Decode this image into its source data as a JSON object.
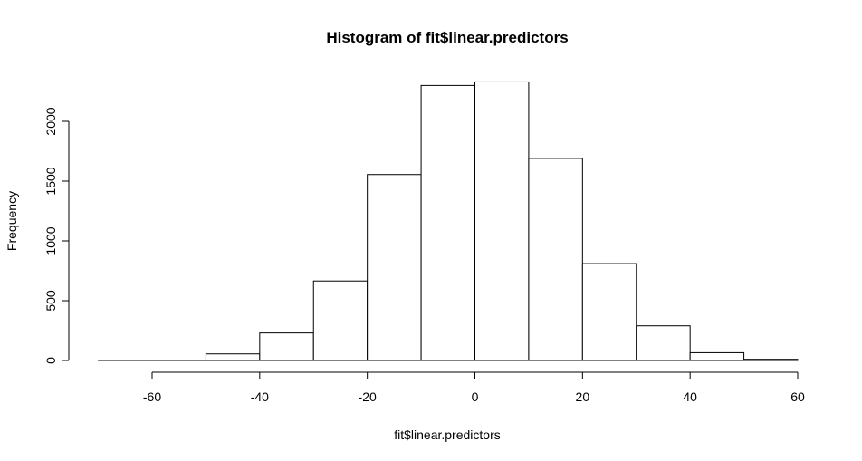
{
  "chart_data": {
    "type": "bar",
    "title": "Histogram of fit$linear.predictors",
    "xlabel": "fit$linear.predictors",
    "ylabel": "Frequency",
    "bin_edges": [
      -70,
      -60,
      -50,
      -40,
      -30,
      -20,
      -10,
      0,
      10,
      20,
      30,
      40,
      50,
      60
    ],
    "values": [
      1,
      3,
      55,
      230,
      665,
      1555,
      2300,
      2330,
      1690,
      810,
      290,
      65,
      10
    ],
    "xlim": [
      -70,
      60
    ],
    "ylim": [
      0,
      2330
    ],
    "x_ticks": [
      -60,
      -40,
      -20,
      0,
      20,
      40,
      60
    ],
    "x_tick_labels": [
      "-60",
      "-40",
      "-20",
      "0",
      "20",
      "40",
      "60"
    ],
    "y_ticks": [
      0,
      500,
      1000,
      1500,
      2000
    ],
    "y_tick_labels": [
      "0",
      "500",
      "1000",
      "1500",
      "2000"
    ],
    "grid": false,
    "legend": "none",
    "bar_fill": "#ffffff",
    "bar_stroke": "#000000"
  }
}
